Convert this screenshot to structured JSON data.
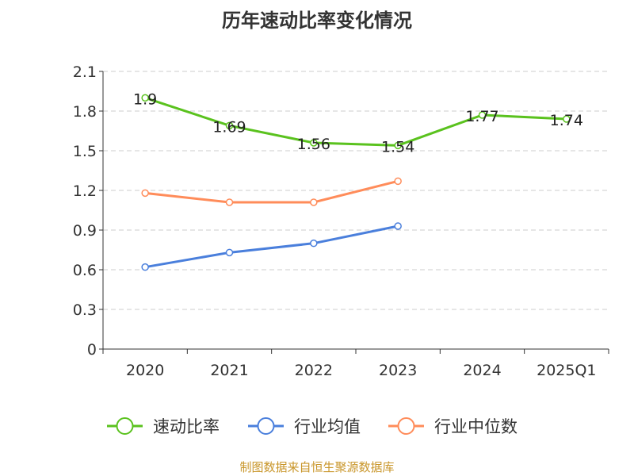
{
  "chart_data": {
    "type": "line",
    "title": "历年速动比率变化情况",
    "categories": [
      "2020",
      "2021",
      "2022",
      "2023",
      "2024",
      "2025Q1"
    ],
    "ylim": [
      0,
      2.1
    ],
    "yticks": [
      "0",
      "0.3",
      "0.6",
      "0.9",
      "1.2",
      "1.5",
      "1.8",
      "2.1"
    ],
    "grid": true,
    "legend_position": "bottom",
    "series": [
      {
        "name": "速动比率",
        "color": "#5ac21e",
        "values": [
          1.9,
          1.69,
          1.56,
          1.54,
          1.77,
          1.74
        ],
        "labels": [
          "1.9",
          "1.69",
          "1.56",
          "1.54",
          "1.77",
          "1.74"
        ]
      },
      {
        "name": "行业均值",
        "color": "#4a7fdc",
        "values": [
          0.62,
          0.73,
          0.8,
          0.93,
          null,
          null
        ]
      },
      {
        "name": "行业中位数",
        "color": "#ff8c5a",
        "values": [
          1.18,
          1.11,
          1.11,
          1.27,
          null,
          null
        ]
      }
    ]
  },
  "footer": "制图数据来自恒生聚源数据库"
}
